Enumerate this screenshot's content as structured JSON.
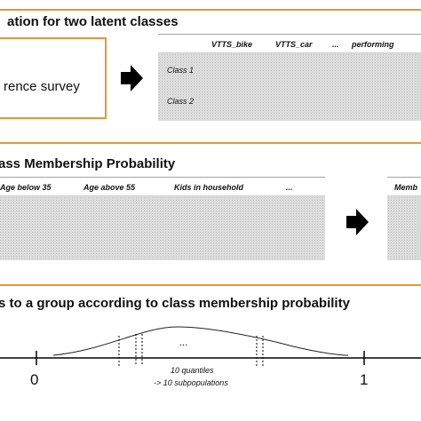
{
  "section1": {
    "heading": "ation for two latent classes",
    "survey_text": "rence survey",
    "table": {
      "headers": [
        "VTTS_bike",
        "VTTS_car",
        "...",
        "performing"
      ],
      "rows": [
        "Class 1",
        "Class 2"
      ]
    }
  },
  "section2": {
    "heading": "ass Membership Probability",
    "table": {
      "headers": [
        "Age below 35",
        "Age above 55",
        "Kids in household",
        "..."
      ]
    },
    "right_header": "Memb"
  },
  "section3": {
    "heading": "s to a group according to class membership probability",
    "dots": "...",
    "axis_start": "0",
    "axis_end": "1",
    "quantiles_text": "10 quantiles",
    "subpop_text": "-> 10 subpopulations"
  },
  "colors": {
    "accent": "#e8962f",
    "panel": "#dcdcdc",
    "arrow": "#000000"
  },
  "icons": {
    "arrow": "right-arrow-icon"
  }
}
